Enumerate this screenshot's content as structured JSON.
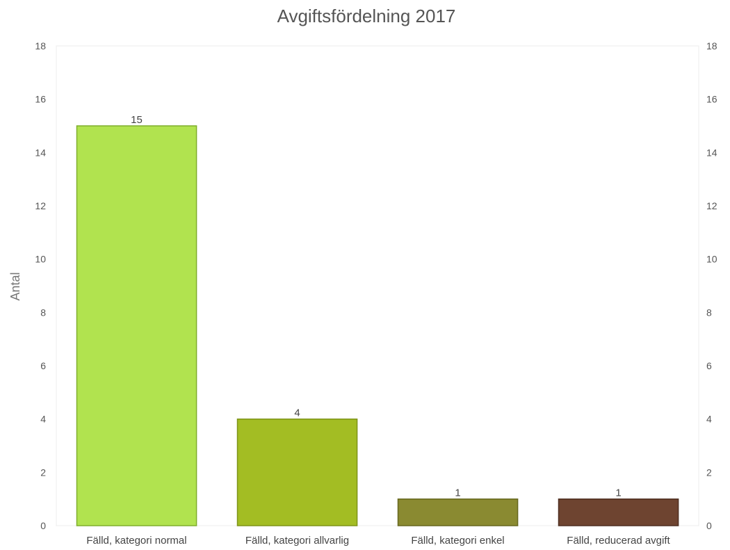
{
  "chart_data": {
    "type": "bar",
    "title": "Avgiftsfördelning 2017",
    "ylabel": "Antal",
    "xlabel": "",
    "categories": [
      "Fälld, kategori normal",
      "Fälld, kategori allvarlig",
      "Fälld, kategori enkel",
      "Fälld, reducerad avgift"
    ],
    "values": [
      15,
      4,
      1,
      1
    ],
    "colors": [
      "#b1e34f",
      "#a3bd23",
      "#8a8a31",
      "#6e4430"
    ],
    "borders": [
      "#7fae2c",
      "#7e9318",
      "#66671f",
      "#4e2f21"
    ],
    "ylim": [
      0,
      18
    ],
    "yticks": [
      0,
      2,
      4,
      6,
      8,
      10,
      12,
      14,
      16,
      18
    ],
    "y_axis_right_mirror": true,
    "grid": false,
    "data_labels": true,
    "legend": "none"
  }
}
